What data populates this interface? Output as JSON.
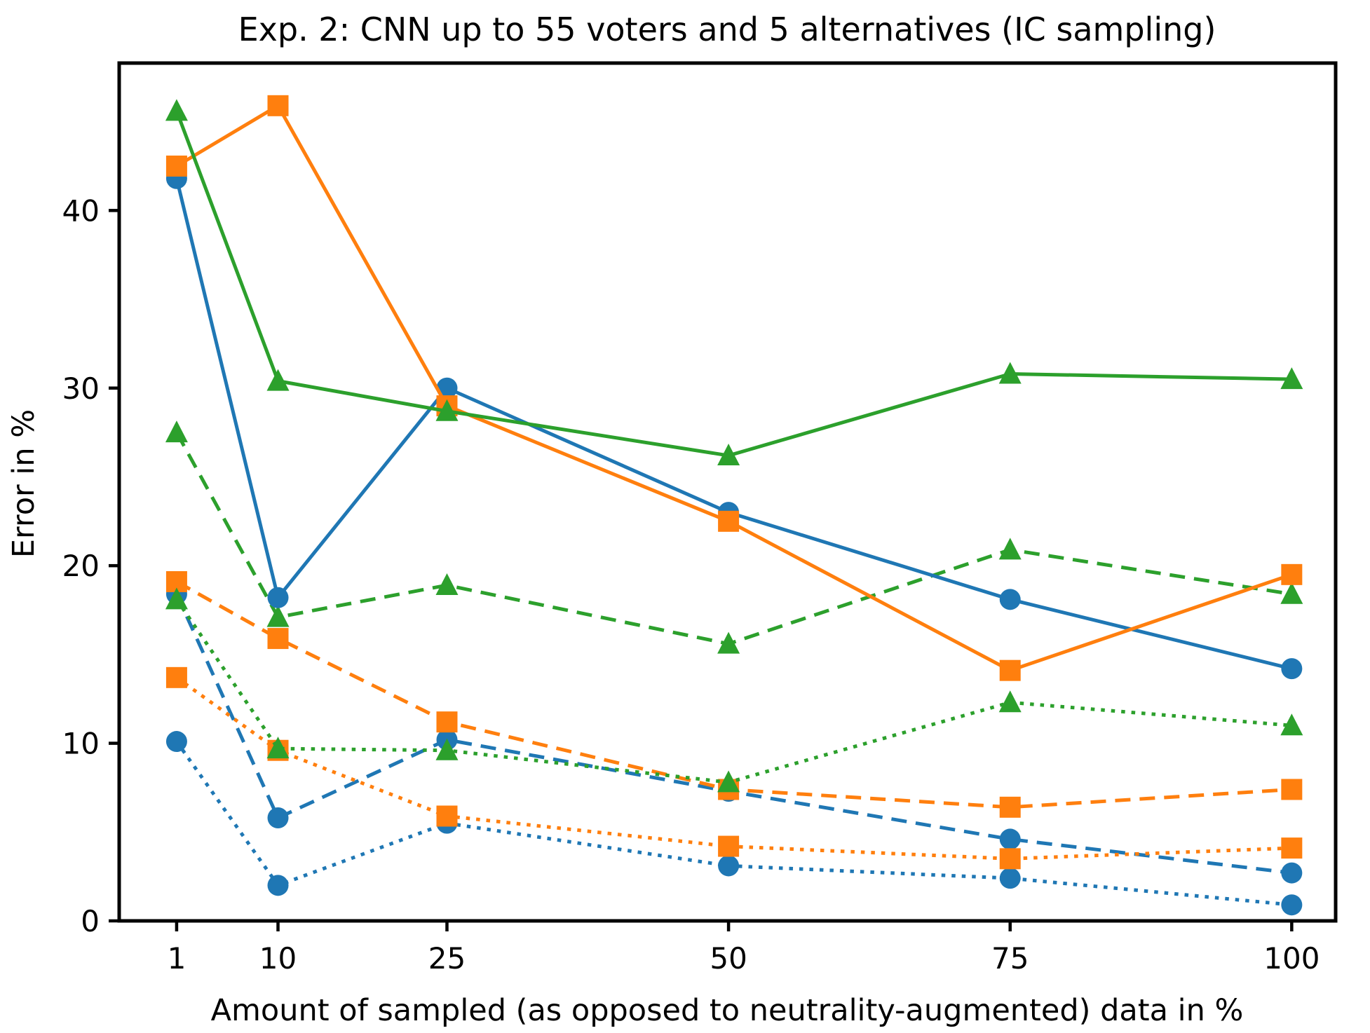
{
  "chart_data": {
    "type": "line",
    "title": "Exp. 2: CNN up to 55 voters and 5 alternatives (IC sampling)",
    "xlabel": "Amount of sampled (as opposed to neutrality-augmented) data in %",
    "ylabel": "Error in %",
    "x": [
      1,
      10,
      25,
      50,
      75,
      100
    ],
    "xticks": [
      1,
      10,
      25,
      50,
      75,
      100
    ],
    "yticks": [
      0,
      10,
      20,
      30,
      40
    ],
    "xlim": [
      -4.1,
      103.9
    ],
    "ylim": [
      0,
      48.3
    ],
    "grid": false,
    "legend": "none",
    "colors": {
      "blue": "#1f77b4",
      "orange": "#ff7f0e",
      "green": "#2ca02c"
    },
    "series": [
      {
        "name": "blue-dashed",
        "color": "#1f77b4",
        "marker": "circle",
        "linestyle": "dashed",
        "values": [
          18.4,
          5.8,
          10.2,
          7.3,
          4.6,
          2.7
        ]
      },
      {
        "name": "orange-dashed",
        "color": "#ff7f0e",
        "marker": "square",
        "linestyle": "dashed",
        "values": [
          19.1,
          15.9,
          11.2,
          7.4,
          6.4,
          7.4
        ]
      },
      {
        "name": "green-dashed",
        "color": "#2ca02c",
        "marker": "triangle",
        "linestyle": "dashed",
        "values": [
          27.5,
          17.1,
          18.9,
          15.6,
          20.9,
          18.4
        ]
      },
      {
        "name": "blue-dotted",
        "color": "#1f77b4",
        "marker": "circle",
        "linestyle": "dotted",
        "values": [
          10.1,
          2.0,
          5.5,
          3.1,
          2.4,
          0.9
        ]
      },
      {
        "name": "orange-dotted",
        "color": "#ff7f0e",
        "marker": "square",
        "linestyle": "dotted",
        "values": [
          13.7,
          9.6,
          5.9,
          4.2,
          3.5,
          4.1
        ]
      },
      {
        "name": "green-dotted",
        "color": "#2ca02c",
        "marker": "triangle",
        "linestyle": "dotted",
        "values": [
          18.1,
          9.7,
          9.6,
          7.8,
          12.3,
          11.0
        ]
      },
      {
        "name": "blue-solid",
        "color": "#1f77b4",
        "marker": "circle",
        "linestyle": "solid",
        "values": [
          41.8,
          18.2,
          30.0,
          23.0,
          18.1,
          14.2
        ]
      },
      {
        "name": "orange-solid",
        "color": "#ff7f0e",
        "marker": "square",
        "linestyle": "solid",
        "values": [
          42.5,
          45.9,
          29.0,
          22.5,
          14.1,
          19.5
        ]
      },
      {
        "name": "green-solid",
        "color": "#2ca02c",
        "marker": "triangle",
        "linestyle": "solid",
        "values": [
          45.6,
          30.4,
          28.7,
          26.2,
          30.8,
          30.5
        ]
      }
    ]
  }
}
